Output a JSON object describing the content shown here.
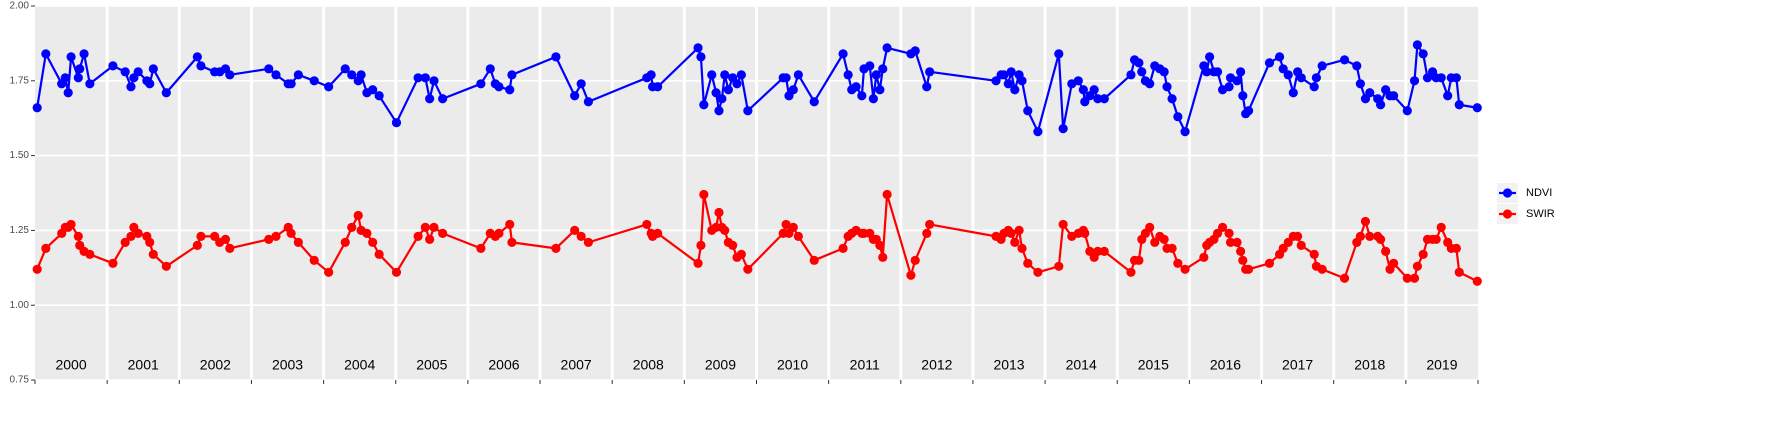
{
  "chart_data": {
    "type": "line",
    "xlim": [
      2000,
      2020
    ],
    "ylim": [
      0.75,
      2.0
    ],
    "yticks": [
      0.75,
      {
        "value": 1.0,
        "label": "1.00"
      },
      1.25,
      {
        "value": 1.5,
        "label": "1.50"
      },
      1.75,
      {
        "value": 2.0,
        "label": "2.00"
      }
    ],
    "xticks": [
      {
        "value": 2000.5,
        "label": "2000"
      },
      {
        "value": 2001.5,
        "label": "2001"
      },
      {
        "value": 2002.5,
        "label": "2002"
      },
      {
        "value": 2003.5,
        "label": "2003"
      },
      {
        "value": 2004.5,
        "label": "2004"
      },
      {
        "value": 2005.5,
        "label": "2005"
      },
      {
        "value": 2006.5,
        "label": "2006"
      },
      {
        "value": 2007.5,
        "label": "2007"
      },
      {
        "value": 2008.5,
        "label": "2008"
      },
      {
        "value": 2009.5,
        "label": "2009"
      },
      {
        "value": 2010.5,
        "label": "2010"
      },
      {
        "value": 2011.5,
        "label": "2011"
      },
      {
        "value": 2012.5,
        "label": "2012"
      },
      {
        "value": 2013.5,
        "label": "2013"
      },
      {
        "value": 2014.5,
        "label": "2014"
      },
      {
        "value": 2015.5,
        "label": "2015"
      },
      {
        "value": 2016.5,
        "label": "2016"
      },
      {
        "value": 2017.5,
        "label": "2017"
      },
      {
        "value": 2018.5,
        "label": "2018"
      },
      {
        "value": 2019.5,
        "label": "2019"
      }
    ],
    "year_boundaries": [
      2000,
      2001,
      2002,
      2003,
      2004,
      2005,
      2006,
      2007,
      2008,
      2009,
      2010,
      2011,
      2012,
      2013,
      2014,
      2015,
      2016,
      2017,
      2018,
      2019,
      2020
    ],
    "grid": true,
    "legend": "right",
    "x": [
      2000.03,
      2000.15,
      2000.37,
      2000.42,
      2000.46,
      2000.5,
      2000.6,
      2000.62,
      2000.68,
      2000.76,
      2001.08,
      2001.25,
      2001.33,
      2001.37,
      2001.43,
      2001.55,
      2001.59,
      2001.64,
      2001.82,
      2002.25,
      2002.3,
      2002.49,
      2002.56,
      2002.64,
      2002.7,
      2003.24,
      2003.34,
      2003.51,
      2003.55,
      2003.65,
      2003.87,
      2004.07,
      2004.3,
      2004.39,
      2004.48,
      2004.52,
      2004.6,
      2004.68,
      2004.77,
      2005.01,
      2005.31,
      2005.41,
      2005.47,
      2005.53,
      2005.65,
      2006.18,
      2006.31,
      2006.38,
      2006.43,
      2006.58,
      2006.61,
      2007.22,
      2007.48,
      2007.57,
      2007.67,
      2008.48,
      2008.54,
      2008.56,
      2008.63,
      2009.19,
      2009.23,
      2009.27,
      2009.38,
      2009.44,
      2009.48,
      2009.52,
      2009.56,
      2009.61,
      2009.67,
      2009.73,
      2009.79,
      2009.88,
      2010.37,
      2010.41,
      2010.45,
      2010.51,
      2010.58,
      2010.8,
      2011.2,
      2011.27,
      2011.32,
      2011.38,
      2011.46,
      2011.49,
      2011.57,
      2011.62,
      2011.66,
      2011.71,
      2011.75,
      2011.81,
      2012.14,
      2012.2,
      2012.36,
      2012.4,
      2013.32,
      2013.39,
      2013.43,
      2013.49,
      2013.53,
      2013.58,
      2013.64,
      2013.68,
      2013.76,
      2013.9,
      2014.19,
      2014.25,
      2014.37,
      2014.46,
      2014.53,
      2014.55,
      2014.62,
      2014.68,
      2014.73,
      2014.82,
      2015.19,
      2015.24,
      2015.3,
      2015.34,
      2015.39,
      2015.45,
      2015.52,
      2015.59,
      2015.65,
      2015.69,
      2015.76,
      2015.84,
      2015.94,
      2016.2,
      2016.24,
      2016.28,
      2016.34,
      2016.39,
      2016.46,
      2016.55,
      2016.57,
      2016.66,
      2016.71,
      2016.74,
      2016.78,
      2016.82,
      2017.11,
      2017.25,
      2017.3,
      2017.37,
      2017.44,
      2017.5,
      2017.55,
      2017.73,
      2017.76,
      2017.84,
      2018.15,
      2018.32,
      2018.37,
      2018.44,
      2018.5,
      2018.61,
      2018.65,
      2018.72,
      2018.78,
      2018.83,
      2019.02,
      2019.12,
      2019.16,
      2019.24,
      2019.3,
      2019.37,
      2019.42,
      2019.49,
      2019.58,
      2019.63,
      2019.7,
      2019.74,
      2019.99
    ],
    "series": [
      {
        "name": "NDVI",
        "color": "#0000ff",
        "values": [
          1.66,
          1.84,
          1.74,
          1.76,
          1.71,
          1.83,
          1.76,
          1.79,
          1.84,
          1.74,
          1.8,
          1.78,
          1.73,
          1.76,
          1.78,
          1.75,
          1.74,
          1.79,
          1.71,
          1.83,
          1.8,
          1.78,
          1.78,
          1.79,
          1.77,
          1.79,
          1.77,
          1.74,
          1.74,
          1.77,
          1.75,
          1.73,
          1.79,
          1.77,
          1.75,
          1.77,
          1.71,
          1.72,
          1.7,
          1.61,
          1.76,
          1.76,
          1.69,
          1.75,
          1.69,
          1.74,
          1.79,
          1.74,
          1.73,
          1.72,
          1.77,
          1.83,
          1.7,
          1.74,
          1.68,
          1.76,
          1.77,
          1.73,
          1.73,
          1.86,
          1.83,
          1.67,
          1.77,
          1.71,
          1.65,
          1.69,
          1.77,
          1.72,
          1.76,
          1.74,
          1.77,
          1.65,
          1.76,
          1.76,
          1.7,
          1.72,
          1.77,
          1.68,
          1.84,
          1.77,
          1.72,
          1.73,
          1.7,
          1.79,
          1.8,
          1.69,
          1.77,
          1.72,
          1.79,
          1.86,
          1.84,
          1.85,
          1.73,
          1.78,
          1.75,
          1.77,
          1.77,
          1.74,
          1.78,
          1.72,
          1.77,
          1.75,
          1.65,
          1.58,
          1.84,
          1.59,
          1.74,
          1.75,
          1.72,
          1.68,
          1.7,
          1.72,
          1.69,
          1.69,
          1.77,
          1.82,
          1.81,
          1.78,
          1.75,
          1.74,
          1.8,
          1.79,
          1.78,
          1.73,
          1.69,
          1.63,
          1.58,
          1.8,
          1.78,
          1.83,
          1.78,
          1.78,
          1.72,
          1.73,
          1.76,
          1.75,
          1.78,
          1.7,
          1.64,
          1.65,
          1.81,
          1.83,
          1.79,
          1.77,
          1.71,
          1.78,
          1.76,
          1.73,
          1.76,
          1.8,
          1.82,
          1.8,
          1.74,
          1.69,
          1.71,
          1.69,
          1.67,
          1.72,
          1.7,
          1.7,
          1.65,
          1.75,
          1.87,
          1.84,
          1.76,
          1.78,
          1.76,
          1.76,
          1.7,
          1.76,
          1.76,
          1.67,
          1.66
        ]
      },
      {
        "name": "SWIR",
        "color": "#ff0000",
        "values": [
          1.12,
          1.19,
          1.24,
          1.26,
          1.26,
          1.27,
          1.23,
          1.2,
          1.18,
          1.17,
          1.14,
          1.21,
          1.23,
          1.26,
          1.24,
          1.23,
          1.21,
          1.17,
          1.13,
          1.2,
          1.23,
          1.23,
          1.21,
          1.22,
          1.19,
          1.22,
          1.23,
          1.26,
          1.24,
          1.21,
          1.15,
          1.11,
          1.21,
          1.26,
          1.3,
          1.25,
          1.24,
          1.21,
          1.17,
          1.11,
          1.23,
          1.26,
          1.22,
          1.26,
          1.24,
          1.19,
          1.24,
          1.23,
          1.24,
          1.27,
          1.21,
          1.19,
          1.25,
          1.23,
          1.21,
          1.27,
          1.24,
          1.23,
          1.24,
          1.14,
          1.2,
          1.37,
          1.25,
          1.26,
          1.31,
          1.26,
          1.25,
          1.21,
          1.2,
          1.16,
          1.17,
          1.12,
          1.24,
          1.27,
          1.24,
          1.26,
          1.23,
          1.15,
          1.19,
          1.23,
          1.24,
          1.25,
          1.24,
          1.24,
          1.24,
          1.22,
          1.22,
          1.2,
          1.16,
          1.37,
          1.1,
          1.15,
          1.24,
          1.27,
          1.23,
          1.22,
          1.24,
          1.25,
          1.24,
          1.21,
          1.25,
          1.19,
          1.14,
          1.11,
          1.13,
          1.27,
          1.23,
          1.24,
          1.25,
          1.24,
          1.18,
          1.16,
          1.18,
          1.18,
          1.11,
          1.15,
          1.15,
          1.22,
          1.24,
          1.26,
          1.21,
          1.23,
          1.22,
          1.19,
          1.19,
          1.14,
          1.12,
          1.16,
          1.2,
          1.21,
          1.22,
          1.24,
          1.26,
          1.24,
          1.21,
          1.21,
          1.18,
          1.15,
          1.12,
          1.12,
          1.14,
          1.17,
          1.19,
          1.21,
          1.23,
          1.23,
          1.2,
          1.17,
          1.13,
          1.12,
          1.09,
          1.21,
          1.23,
          1.28,
          1.23,
          1.23,
          1.22,
          1.18,
          1.12,
          1.14,
          1.09,
          1.09,
          1.13,
          1.17,
          1.22,
          1.22,
          1.22,
          1.26,
          1.21,
          1.19,
          1.19,
          1.11,
          1.08
        ]
      }
    ]
  }
}
